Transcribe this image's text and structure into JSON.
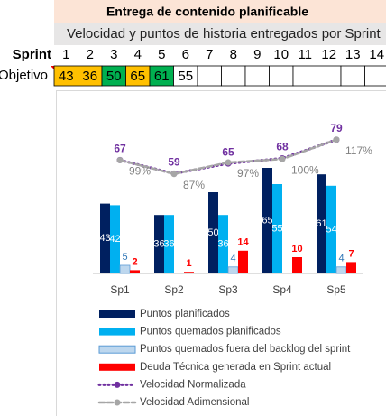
{
  "sheet": {
    "title": "Entrega de contenido planificable",
    "subtitle": "Velocidad y puntos de historia entregados por Sprint",
    "sprint_label": "Sprint",
    "sprints": [
      1,
      2,
      3,
      4,
      5,
      6,
      7,
      8,
      9,
      10,
      11,
      12,
      13,
      14
    ],
    "objective_label": "Objetivo",
    "objectives": [
      43,
      36,
      50,
      65,
      61,
      55
    ],
    "objective_colors": [
      "#ffc000",
      "#ffc000",
      "#00b050",
      "#ffc000",
      "#00b050",
      "#ffffff"
    ]
  },
  "chart_data": {
    "type": "bar",
    "categories": [
      "Sp1",
      "Sp2",
      "Sp3",
      "Sp4",
      "Sp5"
    ],
    "ylim": [
      0,
      100
    ],
    "y2lim": [
      0,
      96
    ],
    "y3lim": [
      0,
      142
    ],
    "series": [
      {
        "name": "Puntos planificados",
        "type": "bar",
        "color": "#002060",
        "values": [
          43,
          36,
          50,
          65,
          61
        ]
      },
      {
        "name": "Puntos quemados planificados",
        "type": "bar",
        "color": "#00b0f0",
        "values": [
          42,
          36,
          36,
          55,
          54
        ]
      },
      {
        "name": "Puntos quemados fuera del backlog del sprint",
        "type": "bar",
        "color": "#bdd7ee",
        "values": [
          5,
          null,
          4,
          null,
          4
        ]
      },
      {
        "name": "Deuda Técnica generada en Sprint actual",
        "type": "bar",
        "color": "#ff0000",
        "values": [
          2,
          1,
          14,
          10,
          7
        ]
      },
      {
        "name": "Velocidad Normalizada",
        "type": "line",
        "style": "dot",
        "axis": "y2",
        "color": "#7030a0",
        "values": [
          67,
          59,
          65,
          68,
          79
        ]
      },
      {
        "name": "Velocidad Adimensional",
        "type": "line",
        "style": "dash",
        "axis": "y3",
        "color": "#a6a6a6",
        "values": [
          99,
          87,
          97,
          100,
          117
        ],
        "value_labels": [
          "99%",
          "87%",
          "97%",
          "100%",
          "117%"
        ]
      }
    ]
  }
}
